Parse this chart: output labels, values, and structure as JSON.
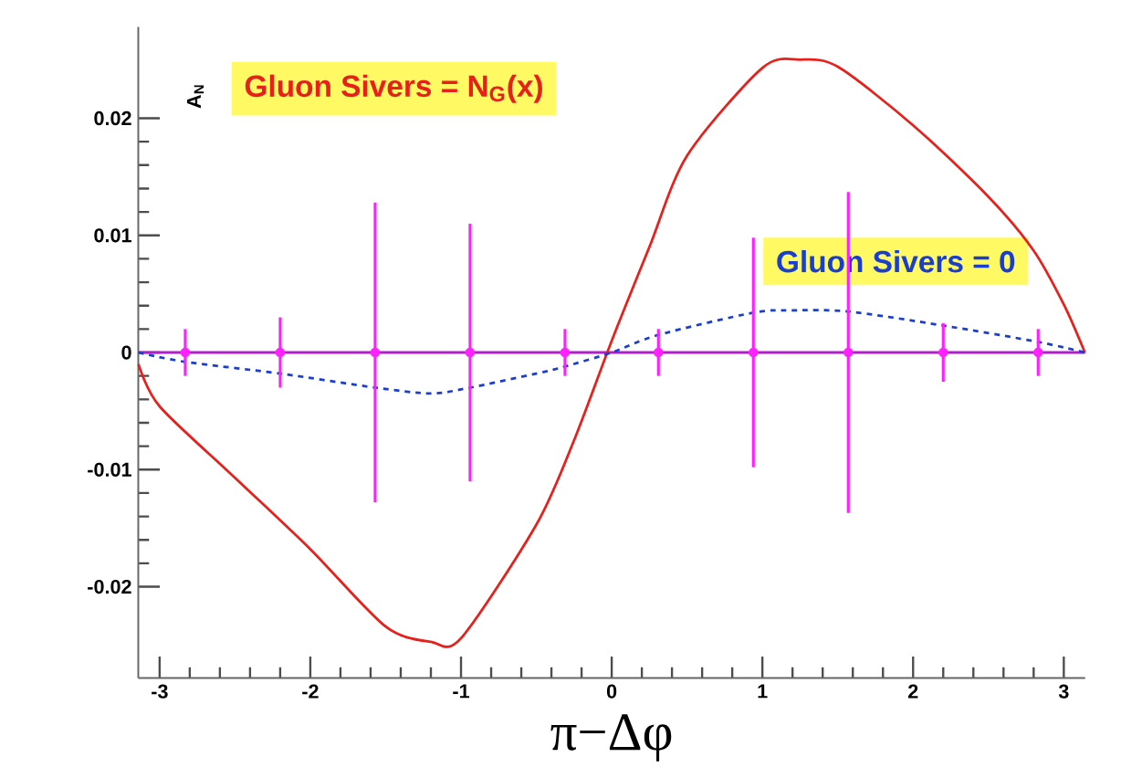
{
  "chart_data": {
    "type": "line",
    "xlabel": "π−Δφ",
    "ylabel": "A$_{N}$",
    "xlim": [
      -3.1416,
      3.1416
    ],
    "ylim": [
      -0.0278,
      0.0278
    ],
    "xticks": [
      -3,
      -2,
      -1,
      0,
      1,
      2,
      3
    ],
    "yticks": [
      -0.02,
      -0.01,
      0,
      0.01,
      0.02
    ],
    "grid": false,
    "legend": false,
    "ref_lines": [
      {
        "axis": "y",
        "value": 0,
        "color": "#b020c8",
        "line_style": "solid"
      }
    ],
    "series": [
      {
        "name": "Gluon Sivers = N$_{G}$(x)",
        "color": "#e8201c",
        "line_style": "solid",
        "marker": "none",
        "x": [
          -3.14,
          -3.0,
          -2.5,
          -2.0,
          -1.5,
          -1.2,
          -1.0,
          -0.5,
          -0.25,
          0.0,
          0.25,
          0.5,
          1.0,
          1.25,
          1.5,
          2.0,
          2.5,
          2.8,
          3.0,
          3.14
        ],
        "values": [
          -0.001,
          -0.0046,
          -0.0107,
          -0.0168,
          -0.0234,
          -0.0247,
          -0.0244,
          -0.0147,
          -0.0075,
          0.001,
          0.009,
          0.0168,
          0.0243,
          0.025,
          0.0244,
          0.0194,
          0.0133,
          0.0087,
          0.0041,
          0.0
        ]
      },
      {
        "name": "Gluon Sivers = 0",
        "color": "#1a3fd0",
        "line_style": "dashed",
        "marker": "none",
        "x": [
          -3.14,
          -2.83,
          -2.2,
          -1.57,
          -1.2,
          -0.94,
          -0.5,
          -0.31,
          0.0,
          0.31,
          0.94,
          1.2,
          1.57,
          2.2,
          2.83,
          3.14
        ],
        "values": [
          0.0,
          -0.0008,
          -0.0018,
          -0.003,
          -0.0035,
          -0.003,
          -0.0018,
          -0.0012,
          0.0,
          0.0015,
          0.0034,
          0.0036,
          0.0035,
          0.0023,
          0.0009,
          0.0
        ]
      },
      {
        "type": "scatter",
        "color": "#ff20ff",
        "marker": "circle",
        "x": [
          -2.83,
          -2.2,
          -1.57,
          -0.94,
          -0.31,
          0.31,
          0.94,
          1.57,
          2.2,
          2.83
        ],
        "values": [
          0,
          0,
          0,
          0,
          0,
          0,
          0,
          0,
          0,
          0
        ],
        "errors": [
          0.002,
          0.003,
          0.0128,
          0.011,
          0.002,
          0.002,
          0.0098,
          0.0137,
          0.0025,
          0.002
        ]
      }
    ]
  }
}
